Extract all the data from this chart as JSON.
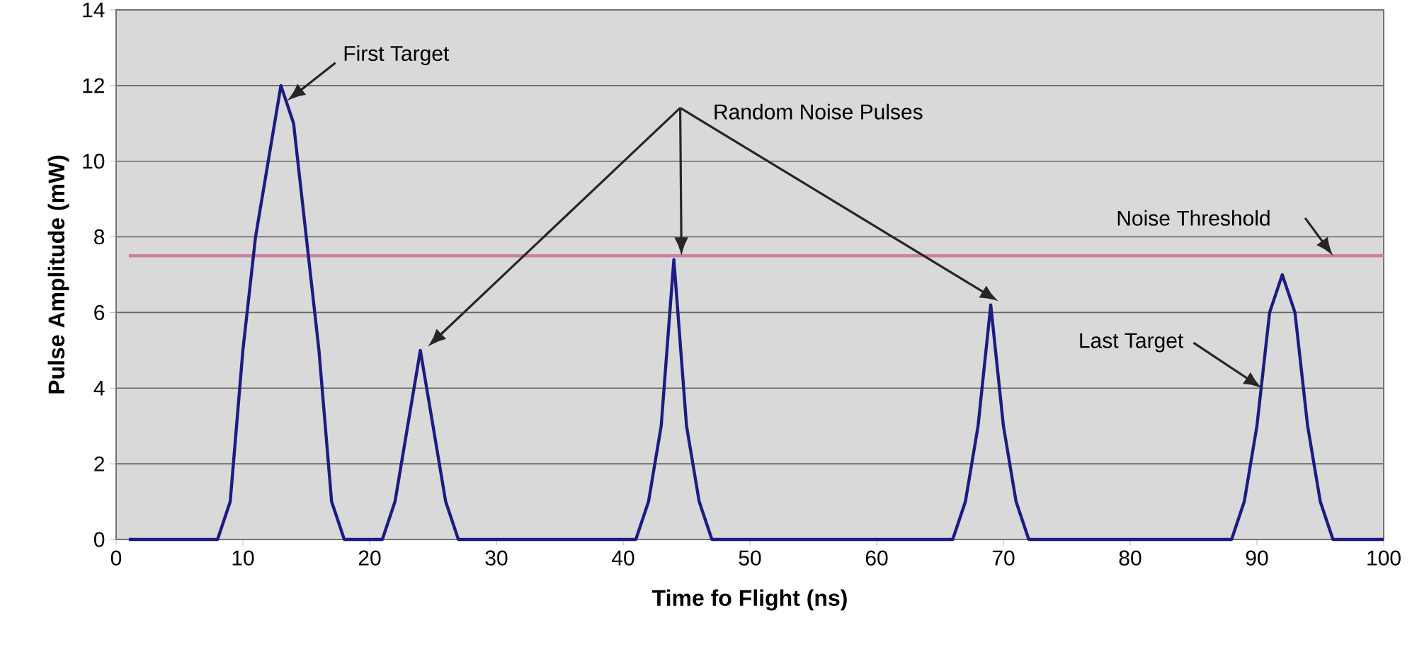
{
  "chart_data": {
    "type": "line",
    "xlabel": "Time fo Flight (ns)",
    "ylabel": "Pulse Amplitude (mW)",
    "xlim": [
      0,
      100
    ],
    "ylim": [
      0,
      14
    ],
    "xticks": [
      0,
      10,
      20,
      30,
      40,
      50,
      60,
      70,
      80,
      90,
      100
    ],
    "yticks": [
      0,
      2,
      4,
      6,
      8,
      10,
      12,
      14
    ],
    "grid": "y",
    "marker": "none",
    "line_style": "solid",
    "series": [
      {
        "color": "#1c1c82",
        "x": [
          1,
          2,
          3,
          4,
          5,
          6,
          7,
          8,
          9,
          10,
          11,
          12,
          13,
          14,
          15,
          16,
          17,
          18,
          19,
          20,
          21,
          22,
          23,
          24,
          25,
          26,
          27,
          28,
          29,
          30,
          31,
          32,
          33,
          34,
          35,
          36,
          37,
          38,
          39,
          40,
          41,
          42,
          43,
          44,
          45,
          46,
          47,
          48,
          49,
          50,
          51,
          52,
          53,
          54,
          55,
          56,
          57,
          58,
          59,
          60,
          61,
          62,
          63,
          64,
          65,
          66,
          67,
          68,
          69,
          70,
          71,
          72,
          73,
          74,
          75,
          76,
          77,
          78,
          79,
          80,
          81,
          82,
          83,
          84,
          85,
          86,
          87,
          88,
          89,
          90,
          91,
          92,
          93,
          94,
          95,
          96,
          97,
          98,
          99,
          100
        ],
        "values": [
          0,
          0,
          0,
          0,
          0,
          0,
          0,
          0,
          1,
          5,
          8,
          10,
          12,
          11,
          8,
          5,
          1,
          0,
          0,
          0,
          0,
          1,
          3,
          5,
          3,
          1,
          0,
          0,
          0,
          0,
          0,
          0,
          0,
          0,
          0,
          0,
          0,
          0,
          0,
          0,
          0,
          1,
          3,
          7.4,
          3,
          1,
          0,
          0,
          0,
          0,
          0,
          0,
          0,
          0,
          0,
          0,
          0,
          0,
          0,
          0,
          0,
          0,
          0,
          0,
          0,
          0,
          1,
          3,
          6.2,
          3,
          1,
          0,
          0,
          0,
          0,
          0,
          0,
          0,
          0,
          0,
          0,
          0,
          0,
          0,
          0,
          0,
          0,
          0,
          1,
          3,
          6,
          7,
          6,
          3,
          1,
          0,
          0,
          0,
          0,
          0
        ]
      }
    ],
    "ref_lines": [
      {
        "axis": "y",
        "value": 7.5,
        "label": "Noise Threshold",
        "color": "#c882a8"
      }
    ],
    "annotations": [
      "First Target",
      "Random Noise Pulses",
      "Last Target"
    ]
  }
}
